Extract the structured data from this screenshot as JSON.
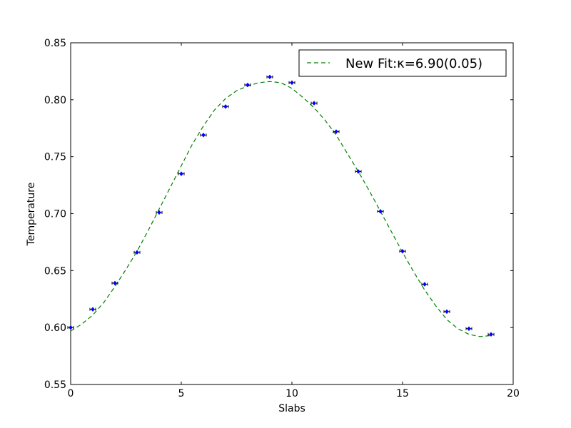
{
  "chart_data": {
    "type": "scatter",
    "title": "",
    "xlabel": "Slabs",
    "ylabel": "Temperature",
    "xlim": [
      0,
      20
    ],
    "ylim": [
      0.55,
      0.85
    ],
    "grid": false,
    "legend_placement": "top-right",
    "x_ticks": [
      "0",
      "5",
      "10",
      "15",
      "20"
    ],
    "y_ticks": [
      "0.55",
      "0.60",
      "0.65",
      "0.70",
      "0.75",
      "0.80",
      "0.85"
    ],
    "series": [
      {
        "kind": "points",
        "color": "#0000ff",
        "x": [
          0,
          1,
          2,
          3,
          4,
          5,
          6,
          7,
          8,
          9,
          10,
          11,
          12,
          13,
          14,
          15,
          16,
          17,
          18,
          19
        ],
        "y": [
          0.6,
          0.616,
          0.639,
          0.666,
          0.701,
          0.735,
          0.769,
          0.794,
          0.813,
          0.82,
          0.815,
          0.797,
          0.772,
          0.737,
          0.702,
          0.667,
          0.638,
          0.614,
          0.599,
          0.594
        ]
      },
      {
        "kind": "fit-line",
        "name": "New Fit:κ=6.90(0.05)",
        "color": "#008000",
        "style": "dashed",
        "x": [
          0,
          0.5,
          1,
          1.5,
          2,
          2.5,
          3,
          3.5,
          4,
          4.5,
          5,
          5.5,
          6,
          6.5,
          7,
          7.5,
          8,
          8.5,
          9,
          9.5,
          10,
          10.5,
          11,
          11.5,
          12,
          12.5,
          13,
          13.5,
          14,
          14.5,
          15,
          15.5,
          16,
          16.5,
          17,
          17.5,
          18,
          18.5,
          19
        ],
        "y": [
          0.597,
          0.603,
          0.611,
          0.622,
          0.636,
          0.651,
          0.667,
          0.685,
          0.704,
          0.723,
          0.742,
          0.761,
          0.777,
          0.791,
          0.801,
          0.808,
          0.812,
          0.815,
          0.816,
          0.815,
          0.81,
          0.802,
          0.793,
          0.782,
          0.769,
          0.753,
          0.737,
          0.72,
          0.702,
          0.684,
          0.666,
          0.649,
          0.633,
          0.619,
          0.607,
          0.599,
          0.594,
          0.592,
          0.593
        ]
      }
    ]
  }
}
